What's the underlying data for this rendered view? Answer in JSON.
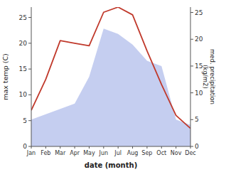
{
  "chart_data": {
    "type": "line",
    "categories": [
      "Jan",
      "Feb",
      "Mar",
      "Apr",
      "May",
      "Jun",
      "Jul",
      "Aug",
      "Sep",
      "Oct",
      "Nov",
      "Dec"
    ],
    "xlabel": "date (month)",
    "ylabel": "max temp (C)",
    "y2label": "med. precipitation\n(kg/m2)",
    "series": [
      {
        "type": "area",
        "axis": "y2",
        "color": "#c5cef0",
        "values": [
          5,
          6,
          7,
          8,
          13,
          22,
          21,
          19,
          16,
          15,
          5,
          4
        ]
      },
      {
        "type": "line",
        "color": "#c0392b",
        "values": [
          7,
          13,
          20.5,
          20.0,
          19.5,
          26.0,
          27.0,
          25.5,
          18.5,
          12,
          6,
          3.5
        ]
      }
    ],
    "ylim": [
      0,
      27
    ],
    "yticks": [
      0,
      5,
      10,
      15,
      20,
      25
    ],
    "y2lim": [
      0,
      26
    ],
    "y2ticks": [
      0,
      5,
      10,
      15,
      20,
      25
    ]
  }
}
